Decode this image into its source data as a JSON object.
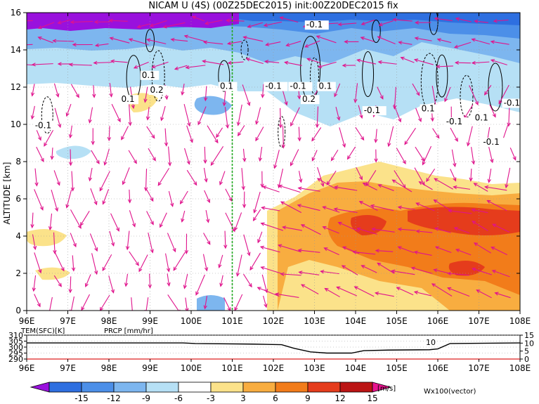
{
  "title": "NICAM U (4S) (00Z25DEC2015) init:00Z20DEC2015 fix",
  "colors": {
    "vector": "#e0138c",
    "divider": "#22aa22",
    "prcp": "#dd2222",
    "tem_line": "#000000"
  },
  "chart_data": [
    {
      "type": "heatmap",
      "title": "NICAM U (4S) (00Z25DEC2015) init:00Z20DEC2015 fix",
      "xlabel": "",
      "ylabel": "ALTITUDE [km]",
      "x_ticks": [
        "96E",
        "97E",
        "98E",
        "99E",
        "100E",
        "101E",
        "102E",
        "103E",
        "104E",
        "105E",
        "106E",
        "107E",
        "108E"
      ],
      "x_range": [
        96,
        108
      ],
      "y_ticks": [
        "0",
        "2",
        "4",
        "6",
        "8",
        "10",
        "12",
        "14",
        "16"
      ],
      "y_range": [
        0,
        16
      ],
      "grid": true,
      "divider_lon": 101,
      "contour_labels": [
        {
          "text": "0.1",
          "lon": 98.8,
          "alt": 12.5
        },
        {
          "text": "0.2",
          "lon": 99.0,
          "alt": 11.7
        },
        {
          "text": "0.1",
          "lon": 98.3,
          "alt": 11.2
        },
        {
          "text": "0.1",
          "lon": 100.7,
          "alt": 11.9
        },
        {
          "text": "-0.1",
          "lon": 96.2,
          "alt": 9.8
        },
        {
          "text": "-0.1",
          "lon": 102.8,
          "alt": 15.2
        },
        {
          "text": "-0.1",
          "lon": 101.8,
          "alt": 11.9
        },
        {
          "text": "-0.1",
          "lon": 102.4,
          "alt": 11.9
        },
        {
          "text": "0.2",
          "lon": 102.7,
          "alt": 11.2
        },
        {
          "text": "0.1",
          "lon": 103.1,
          "alt": 11.9
        },
        {
          "text": "-0.1",
          "lon": 104.2,
          "alt": 10.6
        },
        {
          "text": "0.1",
          "lon": 105.6,
          "alt": 10.7
        },
        {
          "text": "-0.1",
          "lon": 106.2,
          "alt": 10.0
        },
        {
          "text": "0.1",
          "lon": 106.9,
          "alt": 10.2
        },
        {
          "text": "-0.1",
          "lon": 107.6,
          "alt": 11.0
        },
        {
          "text": "-0.1",
          "lon": 107.1,
          "alt": 8.9
        }
      ],
      "colorbar": {
        "ticks": [
          "-15",
          "-12",
          "-9",
          "-6",
          "-3",
          "3",
          "6",
          "9",
          "12",
          "15"
        ],
        "unit": "[m/s]",
        "colors": [
          "#9911dd",
          "#2e6fe0",
          "#4c8fe8",
          "#7db6ef",
          "#b6e0f5",
          "#ffffff",
          "#fbe28a",
          "#f8ad40",
          "#f27c1a",
          "#e53c1c",
          "#bb1414",
          "#e8138e"
        ]
      },
      "vector_label": "Wx100(vector)"
    },
    {
      "type": "line",
      "series": [
        {
          "name": "TEM(SFC)[K]",
          "x": [
            96,
            99.8,
            100.1,
            101.5,
            102.2,
            102.5,
            102.9,
            103.3,
            103.9,
            104.2,
            104.8,
            105.8,
            106.0,
            106.3,
            108
          ],
          "y": [
            303.5,
            303.5,
            303.0,
            302.5,
            302.0,
            299.0,
            296.0,
            295.0,
            295.0,
            297.0,
            297.5,
            297.8,
            298.5,
            303.0,
            303.5
          ]
        },
        {
          "name": "PRCP [mm/hr]",
          "x": [
            96,
            108
          ],
          "y": [
            0,
            0
          ]
        }
      ],
      "x_ticks": [
        "96E",
        "97E",
        "98E",
        "99E",
        "100E",
        "101E",
        "102E",
        "103E",
        "104E",
        "105E",
        "106E",
        "107E",
        "108E"
      ],
      "y_left_ticks": [
        "290",
        "295",
        "300",
        "305",
        "310"
      ],
      "y_left_range": [
        290,
        310
      ],
      "y_right_ticks": [
        "0",
        "5",
        "10",
        "15"
      ],
      "y_right_range": [
        0,
        15
      ],
      "annotation": "10"
    }
  ]
}
